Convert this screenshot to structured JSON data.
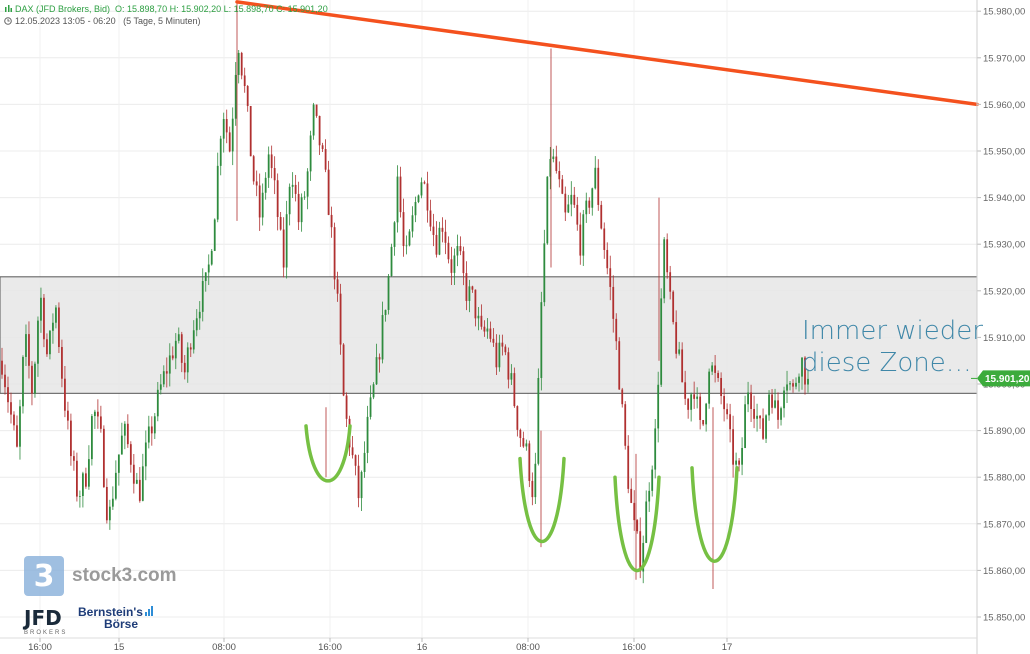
{
  "header": {
    "instrument": "DAX (JFD Brokers, Bid)",
    "ohlc": "O: 15.898,70   H: 15.902,20   L: 15.898,70   C: 15.901,20",
    "range": "12.05.2023 13:05 - 06:20",
    "period": "(5 Tage, 5 Minuten)"
  },
  "annotation": {
    "line1": "Immer wieder",
    "line2": "diese Zone…"
  },
  "watermark": {
    "stock3_box": "3",
    "stock3_text": "stock3.com",
    "jfd_big": "JFD",
    "jfd_small": "BROKERS",
    "bernstein_line1": "Bernstein's",
    "bernstein_line2": "Börse"
  },
  "colors": {
    "trendline": "#f4511e",
    "zone_fill": "#e6e6e6",
    "zone_border": "#555555",
    "u_marks": "#76c043",
    "candle_up": "#2e8b3e",
    "candle_down": "#b03030",
    "price_tag": "#3cab3c",
    "annotation": "#3f87a8"
  },
  "chart_data": {
    "type": "candlestick",
    "y_axis": {
      "ylim": [
        15848,
        15988
      ],
      "ticks": [
        15850,
        15860,
        15870,
        15880,
        15890,
        15900,
        15910,
        15920,
        15930,
        15940,
        15950,
        15960,
        15970,
        15980
      ],
      "tick_labels": [
        "15.850,00",
        "15.860,00",
        "15.870,00",
        "15.880,00",
        "15.890,00",
        "15.900,00",
        "15.910,00",
        "15.920,00",
        "15.930,00",
        "15.940,00",
        "15.950,00",
        "15.960,00",
        "15.970,00",
        "15.980,00"
      ],
      "position": "right",
      "grid": true
    },
    "x_axis": {
      "labels": [
        "16:00",
        "15",
        "08:00",
        "16:00",
        "16",
        "08:00",
        "16:00",
        "17"
      ],
      "grid": true
    },
    "current_price": {
      "value": 15901.2,
      "label": "15.901,20"
    },
    "zone": {
      "low": 15898,
      "high": 15923
    },
    "trendline": {
      "from": 15982,
      "to": 15960
    },
    "path": [
      15905,
      15895,
      15885,
      15910,
      15898,
      15920,
      15905,
      15918,
      15900,
      15885,
      15876,
      15880,
      15895,
      15888,
      15870,
      15882,
      15890,
      15884,
      15876,
      15886,
      15893,
      15900,
      15905,
      15910,
      15902,
      15912,
      15918,
      15922,
      15938,
      15960,
      15950,
      15975,
      15962,
      15945,
      15935,
      15950,
      15940,
      15925,
      15948,
      15935,
      15942,
      15958,
      15950,
      15938,
      15920,
      15895,
      15885,
      15875,
      15890,
      15900,
      15912,
      15925,
      15945,
      15925,
      15935,
      15945,
      15940,
      15930,
      15935,
      15925,
      15928,
      15920,
      15918,
      15910,
      15912,
      15905,
      15908,
      15900,
      15890,
      15885,
      15875,
      15920,
      15950,
      15945,
      15935,
      15940,
      15930,
      15938,
      15945,
      15932,
      15920,
      15905,
      15885,
      15870,
      15862,
      15878,
      15890,
      15930,
      15915,
      15905,
      15895,
      15900,
      15888,
      15905,
      15900,
      15895,
      15885,
      15880,
      15900,
      15895,
      15888,
      15900,
      15892,
      15903,
      15898,
      15906,
      15900
    ],
    "lows": [
      15880,
      15865,
      15858,
      15856,
      15860
    ],
    "highs": [
      15982,
      15972,
      15940,
      15913,
      15908
    ]
  }
}
